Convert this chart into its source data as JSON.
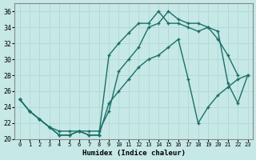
{
  "xlabel": "Humidex (Indice chaleur)",
  "xlim": [
    -0.5,
    23.5
  ],
  "ylim": [
    20,
    37
  ],
  "xticks": [
    0,
    1,
    2,
    3,
    4,
    5,
    6,
    7,
    8,
    9,
    10,
    11,
    12,
    13,
    14,
    15,
    16,
    17,
    18,
    19,
    20,
    21,
    22,
    23
  ],
  "yticks": [
    20,
    22,
    24,
    26,
    28,
    30,
    32,
    34,
    36
  ],
  "bg_color": "#c6e8e6",
  "line_color": "#1a7068",
  "grid_color": "#b0d8d4",
  "line1_x": [
    0,
    1,
    2,
    3,
    4,
    5,
    6,
    7,
    8,
    9,
    10,
    11,
    12,
    13,
    14,
    15,
    16,
    17,
    18,
    19,
    20,
    21,
    22
  ],
  "line1_y": [
    25.0,
    23.5,
    22.5,
    21.5,
    20.5,
    20.5,
    21.0,
    20.5,
    20.5,
    30.5,
    32.0,
    33.3,
    34.5,
    34.5,
    36.0,
    34.5,
    34.5,
    34.0,
    33.5,
    34.0,
    32.5,
    30.5,
    28.0
  ],
  "line2_x": [
    0,
    1,
    2,
    3,
    4,
    5,
    6,
    7,
    8,
    9,
    10,
    11,
    12,
    13,
    14,
    15,
    16,
    17,
    18,
    19,
    20,
    21,
    22,
    23
  ],
  "line2_y": [
    25.0,
    23.5,
    22.5,
    21.5,
    21.0,
    21.0,
    21.0,
    21.0,
    21.0,
    23.5,
    28.5,
    30.0,
    31.5,
    34.0,
    34.5,
    36.0,
    35.0,
    34.5,
    34.5,
    34.0,
    33.5,
    27.0,
    24.5,
    28.0
  ],
  "line3_x": [
    0,
    1,
    2,
    3,
    4,
    5,
    6,
    7,
    8,
    9,
    10,
    11,
    12,
    13,
    14,
    15,
    16,
    17,
    18,
    19,
    20,
    21,
    22,
    23
  ],
  "line3_y": [
    25.0,
    23.5,
    22.5,
    21.5,
    20.5,
    20.5,
    21.0,
    20.5,
    20.5,
    24.5,
    26.0,
    27.5,
    29.0,
    30.0,
    30.5,
    31.5,
    32.5,
    27.5,
    22.0,
    24.0,
    25.5,
    26.5,
    27.5,
    28.0
  ],
  "marker_size": 3.5,
  "linewidth": 1.0
}
